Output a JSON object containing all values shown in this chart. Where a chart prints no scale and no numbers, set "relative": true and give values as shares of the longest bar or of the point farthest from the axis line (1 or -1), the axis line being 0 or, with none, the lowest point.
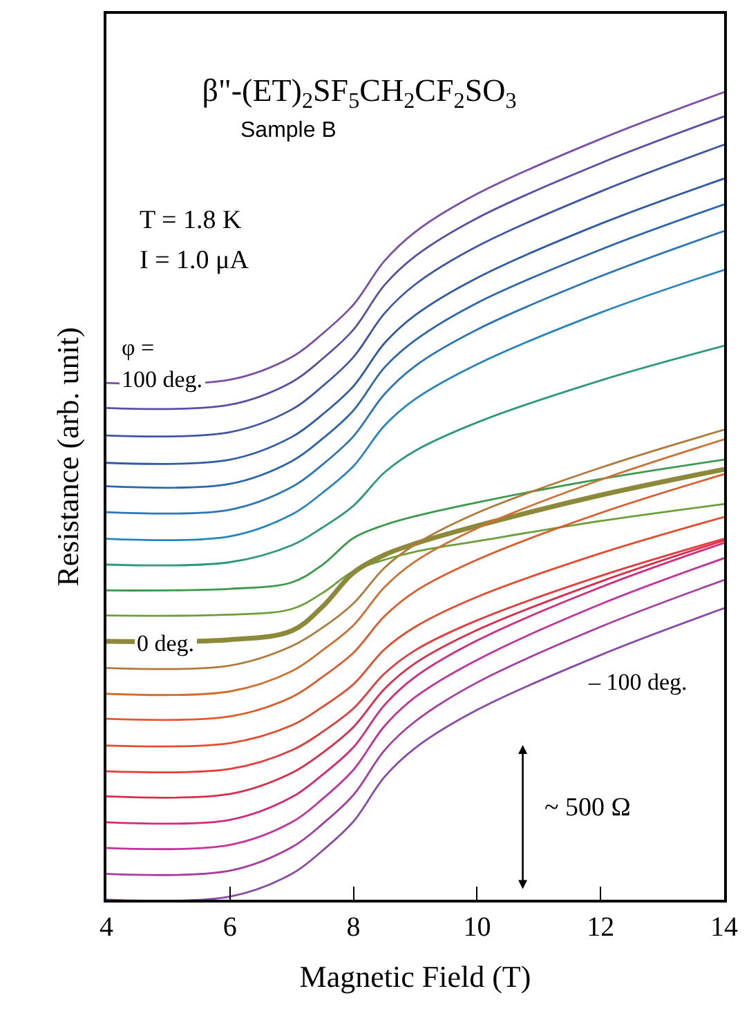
{
  "chart_data": {
    "type": "line",
    "title": "β\"-(ET)$_{2}$SF$_{5}$CH$_{2}$CF$_{2}$SO$_{3}$",
    "xlabel": "Magnetic Field (T)",
    "ylabel": "Resistance (arb. unit)",
    "annotations": [
      "Sample B",
      "T = 1.8 K",
      "I = 1.0 μA",
      "φ =",
      "100 deg.",
      "0 deg.",
      "– 100 deg.",
      "~ 500 Ω"
    ],
    "relative": true,
    "grid": false,
    "line_style": "solid",
    "x": [
      4,
      6,
      7,
      7.5,
      8,
      8.5,
      9,
      10,
      12,
      14
    ],
    "xlim": [
      4,
      14
    ],
    "xticks": [
      4,
      6,
      8,
      10,
      12,
      14
    ],
    "series": [
      {
        "color": "#7b4fa8",
        "values": [
          0.64,
          0.644,
          0.672,
          0.701,
          0.737,
          0.791,
          0.827,
          0.874,
          0.942,
          1.0
        ]
      },
      {
        "color": "#5a4ea8",
        "values": [
          0.609,
          0.613,
          0.641,
          0.67,
          0.706,
          0.761,
          0.797,
          0.844,
          0.912,
          0.97
        ]
      },
      {
        "color": "#3f55a8",
        "values": [
          0.575,
          0.579,
          0.607,
          0.636,
          0.672,
          0.726,
          0.762,
          0.809,
          0.877,
          0.935
        ]
      },
      {
        "color": "#2f5aa8",
        "values": [
          0.541,
          0.545,
          0.573,
          0.601,
          0.636,
          0.689,
          0.724,
          0.77,
          0.837,
          0.893
        ]
      },
      {
        "color": "#2a67b0",
        "values": [
          0.512,
          0.515,
          0.543,
          0.571,
          0.606,
          0.659,
          0.693,
          0.739,
          0.805,
          0.861
        ]
      },
      {
        "color": "#2a76b8",
        "values": [
          0.48,
          0.483,
          0.511,
          0.539,
          0.574,
          0.626,
          0.661,
          0.706,
          0.772,
          0.828
        ]
      },
      {
        "color": "#2585bf",
        "values": [
          0.447,
          0.45,
          0.477,
          0.504,
          0.537,
          0.587,
          0.62,
          0.663,
          0.727,
          0.78
        ]
      },
      {
        "color": "#2a9a7a",
        "values": [
          0.415,
          0.418,
          0.439,
          0.461,
          0.488,
          0.529,
          0.556,
          0.591,
          0.643,
          0.686
        ]
      },
      {
        "color": "#3a9a4a",
        "values": [
          0.383,
          0.385,
          0.393,
          0.415,
          0.448,
          0.464,
          0.475,
          0.492,
          0.521,
          0.545
        ]
      },
      {
        "color": "#6a9f3a",
        "values": [
          0.352,
          0.353,
          0.36,
          0.38,
          0.407,
          0.421,
          0.431,
          0.444,
          0.469,
          0.49
        ]
      },
      {
        "color": "#8c8a3a",
        "values": [
          0.32,
          0.322,
          0.333,
          0.363,
          0.405,
          0.427,
          0.441,
          0.463,
          0.501,
          0.533
        ]
      },
      {
        "color": "#b07a3a",
        "values": [
          0.287,
          0.29,
          0.314,
          0.337,
          0.367,
          0.411,
          0.44,
          0.479,
          0.535,
          0.582
        ]
      },
      {
        "color": "#d07030",
        "values": [
          0.255,
          0.258,
          0.283,
          0.309,
          0.34,
          0.387,
          0.419,
          0.46,
          0.52,
          0.57
        ]
      },
      {
        "color": "#e05a28",
        "values": [
          0.224,
          0.227,
          0.251,
          0.276,
          0.306,
          0.351,
          0.382,
          0.421,
          0.479,
          0.527
        ]
      },
      {
        "color": "#e84a2a",
        "values": [
          0.191,
          0.194,
          0.216,
          0.239,
          0.267,
          0.31,
          0.338,
          0.375,
          0.429,
          0.474
        ]
      },
      {
        "color": "#e83a3a",
        "values": [
          0.159,
          0.162,
          0.185,
          0.208,
          0.237,
          0.28,
          0.309,
          0.346,
          0.401,
          0.447
        ]
      },
      {
        "color": "#e02a4a",
        "values": [
          0.128,
          0.131,
          0.157,
          0.182,
          0.214,
          0.261,
          0.293,
          0.334,
          0.394,
          0.445
        ]
      },
      {
        "color": "#d8287a",
        "values": [
          0.096,
          0.099,
          0.127,
          0.155,
          0.189,
          0.241,
          0.276,
          0.321,
          0.387,
          0.442
        ]
      },
      {
        "color": "#c8309a",
        "values": [
          0.064,
          0.068,
          0.096,
          0.125,
          0.161,
          0.215,
          0.251,
          0.297,
          0.366,
          0.423
        ]
      },
      {
        "color": "#a83aa0",
        "values": [
          0.032,
          0.036,
          0.065,
          0.094,
          0.13,
          0.185,
          0.221,
          0.269,
          0.338,
          0.396
        ]
      },
      {
        "color": "#8a4aa8",
        "values": [
          0.0,
          0.004,
          0.032,
          0.061,
          0.097,
          0.152,
          0.188,
          0.235,
          0.303,
          0.361
        ]
      }
    ]
  }
}
